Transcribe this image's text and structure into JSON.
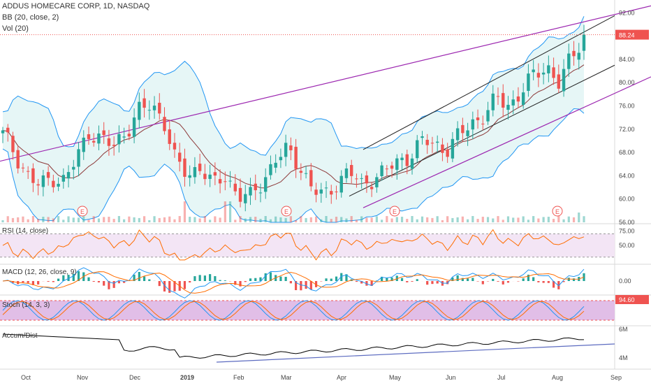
{
  "header": {
    "symbol_line": "ADDUS HOMECARE CORP, 1D, NASDAQ",
    "bb_label": "BB (20, close, 2)",
    "vol_label": "Vol (20)"
  },
  "panes": {
    "rsi_label": "RSI (14, close)",
    "macd_label": "MACD (12, 26, close, 9)",
    "stoch_label": "Stoch (14, 3, 3)",
    "ad_label": "Accum/Dist"
  },
  "colors": {
    "up": "#26a69a",
    "down": "#ef5350",
    "bb_band": "#2196f3",
    "bb_fill": "#e6f6f6",
    "bb_basis": "#8d3a3a",
    "trend_purple": "#9c27b0",
    "channel_black": "#222222",
    "last_price_line": "#ef5350",
    "rsi_line": "#ff6d00",
    "rsi_fill": "#f3e5f5",
    "macd_line": "#2196f3",
    "signal_line": "#ff6d00",
    "stoch_k": "#2196f3",
    "stoch_d": "#ff6d00",
    "stoch_fill": "#e1bee7",
    "ad_line": "#000000",
    "ad_trend": "#5c6bc0",
    "earnings": "#ef5350"
  },
  "chart_data": {
    "type": "candlestick",
    "symbol": "ADDUS HOMECARE CORP",
    "interval": "1D",
    "exchange": "NASDAQ",
    "x_axis_labels": [
      "Oct",
      "Nov",
      "Dec",
      "2019",
      "Feb",
      "Mar",
      "Apr",
      "May",
      "Jun",
      "Jul",
      "Aug",
      "Sep"
    ],
    "price_axis": {
      "ylim": [
        56,
        93
      ],
      "ticks": [
        "92.00",
        "88.00",
        "84.00",
        "80.00",
        "76.00",
        "72.00",
        "68.00",
        "64.00",
        "60.00",
        "56.00"
      ],
      "last_price_label": "88.24",
      "last_price": 88.24
    },
    "price_path": [
      [
        "Oct",
        71
      ],
      [
        "Oct",
        68
      ],
      [
        "Oct",
        64
      ],
      [
        "Oct",
        62
      ],
      [
        "Oct",
        64
      ],
      [
        "Oct",
        63
      ],
      [
        "Nov",
        67
      ],
      [
        "Nov",
        72
      ],
      [
        "Nov",
        70
      ],
      [
        "Nov",
        69
      ],
      [
        "Nov",
        72
      ],
      [
        "Dec",
        75
      ],
      [
        "Dec",
        76
      ],
      [
        "Dec",
        74
      ],
      [
        "Dec",
        66
      ],
      [
        "Dec",
        64
      ],
      [
        "Dec",
        66
      ],
      [
        "2019",
        62
      ],
      [
        "2019",
        64
      ],
      [
        "2019",
        61
      ],
      [
        "Feb",
        60
      ],
      [
        "Feb",
        63
      ],
      [
        "Feb",
        67
      ],
      [
        "Mar",
        68
      ],
      [
        "Mar",
        66
      ],
      [
        "Mar",
        62
      ],
      [
        "Mar",
        60
      ],
      [
        "Mar",
        63
      ],
      [
        "Apr",
        65
      ],
      [
        "Apr",
        62
      ],
      [
        "Apr",
        64
      ],
      [
        "Apr",
        65
      ],
      [
        "May",
        66
      ],
      [
        "May",
        68
      ],
      [
        "May",
        70
      ],
      [
        "May",
        69
      ],
      [
        "Jun",
        69
      ],
      [
        "Jun",
        71
      ],
      [
        "Jun",
        73
      ],
      [
        "Jul",
        75
      ],
      [
        "Jul",
        77
      ],
      [
        "Jul",
        76
      ],
      [
        "Jul",
        79
      ],
      [
        "Aug",
        81
      ],
      [
        "Aug",
        83
      ],
      [
        "Aug",
        80
      ],
      [
        "Aug",
        84
      ],
      [
        "Aug",
        88.24
      ]
    ],
    "volume_spikes": [
      [
        "Nov",
        1
      ],
      [
        "Dec",
        1
      ],
      [
        "Dec",
        1
      ],
      [
        "Aug",
        1
      ]
    ],
    "earnings_markers": [
      {
        "label": "E",
        "month": "Nov"
      },
      {
        "label": "E",
        "month": "Mar"
      },
      {
        "label": "E",
        "month": "May"
      },
      {
        "label": "E",
        "month": "Aug"
      }
    ],
    "rsi": {
      "levels": [
        "75.00",
        "50.00"
      ],
      "upper": 70,
      "lower": 30
    },
    "macd": {
      "zero_label": "0.00"
    },
    "stoch": {
      "last_label": "94.60",
      "last": 94.6
    },
    "accum_dist": {
      "ticks": [
        "6M",
        "4M"
      ]
    }
  }
}
